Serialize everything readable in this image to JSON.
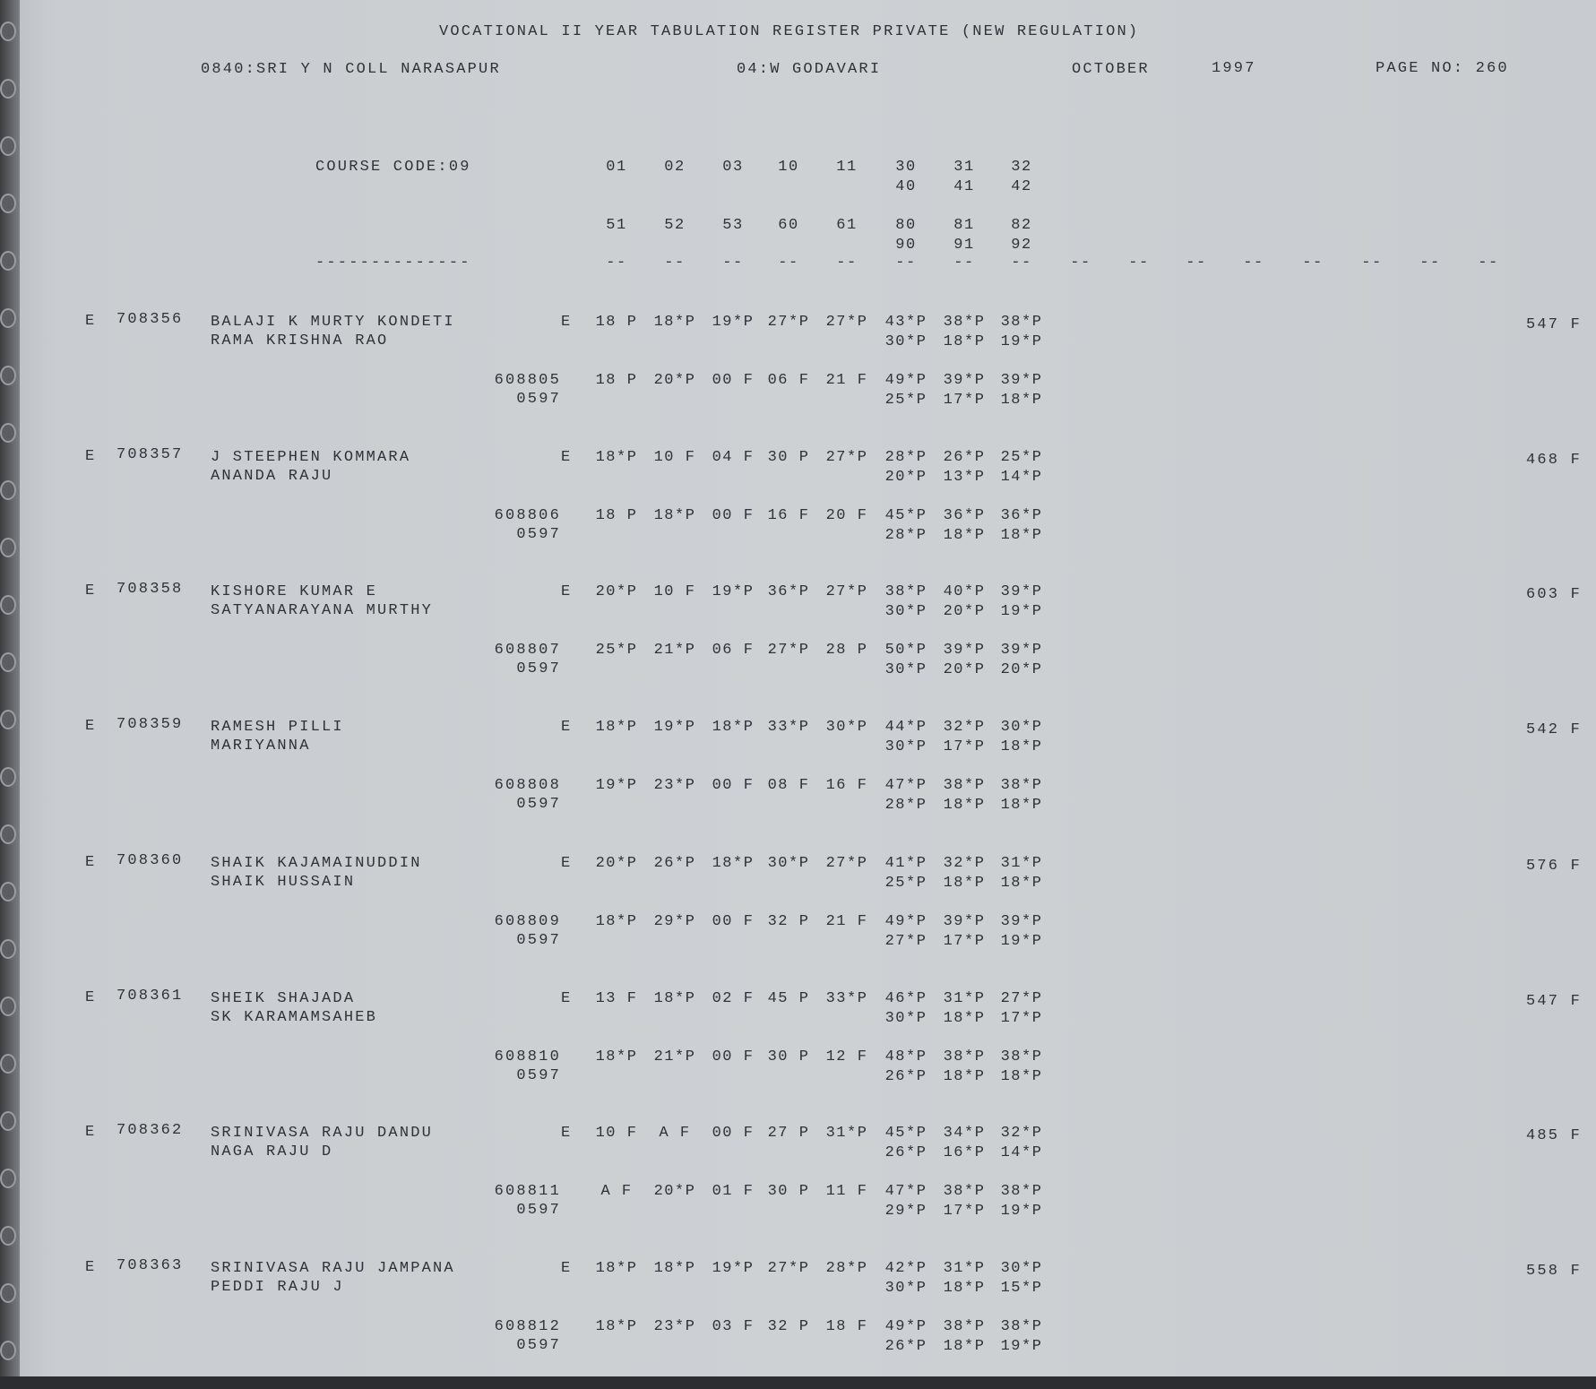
{
  "header": {
    "title": "VOCATIONAL II YEAR TABULATION REGISTER PRIVATE (NEW REGULATION)",
    "college": "0840:SRI Y N COLL NARASAPUR",
    "district": "04:W GODAVARI",
    "month": "OCTOBER",
    "year": "1997",
    "page": "PAGE NO: 260"
  },
  "course": {
    "label": "COURSE CODE:09",
    "codes_row1": [
      "01",
      "02",
      "03",
      "10",
      "11",
      "30",
      "31",
      "32"
    ],
    "codes_row2": [
      "40",
      "41",
      "42"
    ],
    "codes_row3": [
      "51",
      "52",
      "53",
      "60",
      "61",
      "80",
      "81",
      "82"
    ],
    "codes_row4": [
      "90",
      "91",
      "92"
    ],
    "label_dashes": "--------------",
    "col_dashes": "--"
  },
  "students": [
    {
      "flag": "E",
      "roll": "708356",
      "name1": "BALAJI K MURTY KONDETI",
      "name2": "RAMA KRISHNA RAO",
      "code": "E",
      "marks1": [
        "18 P",
        "18*P",
        "19*P",
        "27*P",
        "27*P",
        "43*P",
        "38*P",
        "38*P"
      ],
      "marks2": [
        "30*P",
        "18*P",
        "19*P"
      ],
      "roll2": "608805",
      "code2": "0597",
      "marks3": [
        "18 P",
        "20*P",
        "00 F",
        "06 F",
        "21 F",
        "49*P",
        "39*P",
        "39*P"
      ],
      "marks4": [
        "25*P",
        "17*P",
        "18*P"
      ],
      "total": "547 F"
    },
    {
      "flag": "E",
      "roll": "708357",
      "name1": "J STEEPHEN KOMMARA",
      "name2": "ANANDA RAJU",
      "code": "E",
      "marks1": [
        "18*P",
        "10 F",
        "04 F",
        "30 P",
        "27*P",
        "28*P",
        "26*P",
        "25*P"
      ],
      "marks2": [
        "20*P",
        "13*P",
        "14*P"
      ],
      "roll2": "608806",
      "code2": "0597",
      "marks3": [
        "18 P",
        "18*P",
        "00 F",
        "16 F",
        "20 F",
        "45*P",
        "36*P",
        "36*P"
      ],
      "marks4": [
        "28*P",
        "18*P",
        "18*P"
      ],
      "total": "468 F"
    },
    {
      "flag": "E",
      "roll": "708358",
      "name1": "KISHORE KUMAR E",
      "name2": "SATYANARAYANA MURTHY",
      "code": "E",
      "marks1": [
        "20*P",
        "10 F",
        "19*P",
        "36*P",
        "27*P",
        "38*P",
        "40*P",
        "39*P"
      ],
      "marks2": [
        "30*P",
        "20*P",
        "19*P"
      ],
      "roll2": "608807",
      "code2": "0597",
      "marks3": [
        "25*P",
        "21*P",
        "06 F",
        "27*P",
        "28 P",
        "50*P",
        "39*P",
        "39*P"
      ],
      "marks4": [
        "30*P",
        "20*P",
        "20*P"
      ],
      "total": "603 F"
    },
    {
      "flag": "E",
      "roll": "708359",
      "name1": "RAMESH PILLI",
      "name2": "MARIYANNA",
      "code": "E",
      "marks1": [
        "18*P",
        "19*P",
        "18*P",
        "33*P",
        "30*P",
        "44*P",
        "32*P",
        "30*P"
      ],
      "marks2": [
        "30*P",
        "17*P",
        "18*P"
      ],
      "roll2": "608808",
      "code2": "0597",
      "marks3": [
        "19*P",
        "23*P",
        "00 F",
        "08 F",
        "16 F",
        "47*P",
        "38*P",
        "38*P"
      ],
      "marks4": [
        "28*P",
        "18*P",
        "18*P"
      ],
      "total": "542 F"
    },
    {
      "flag": "E",
      "roll": "708360",
      "name1": "SHAIK KAJAMAINUDDIN",
      "name2": "SHAIK HUSSAIN",
      "code": "E",
      "marks1": [
        "20*P",
        "26*P",
        "18*P",
        "30*P",
        "27*P",
        "41*P",
        "32*P",
        "31*P"
      ],
      "marks2": [
        "25*P",
        "18*P",
        "18*P"
      ],
      "roll2": "608809",
      "code2": "0597",
      "marks3": [
        "18*P",
        "29*P",
        "00 F",
        "32 P",
        "21 F",
        "49*P",
        "39*P",
        "39*P"
      ],
      "marks4": [
        "27*P",
        "17*P",
        "19*P"
      ],
      "total": "576 F"
    },
    {
      "flag": "E",
      "roll": "708361",
      "name1": "SHEIK SHAJADA",
      "name2": "SK KARAMAMSAHEB",
      "code": "E",
      "marks1": [
        "13 F",
        "18*P",
        "02 F",
        "45 P",
        "33*P",
        "46*P",
        "31*P",
        "27*P"
      ],
      "marks2": [
        "30*P",
        "18*P",
        "17*P"
      ],
      "roll2": "608810",
      "code2": "0597",
      "marks3": [
        "18*P",
        "21*P",
        "00 F",
        "30 P",
        "12 F",
        "48*P",
        "38*P",
        "38*P"
      ],
      "marks4": [
        "26*P",
        "18*P",
        "18*P"
      ],
      "total": "547 F"
    },
    {
      "flag": "E",
      "roll": "708362",
      "name1": "SRINIVASA RAJU DANDU",
      "name2": "NAGA RAJU D",
      "code": "E",
      "marks1": [
        "10 F",
        "A F",
        "00 F",
        "27 P",
        "31*P",
        "45*P",
        "34*P",
        "32*P"
      ],
      "marks2": [
        "26*P",
        "16*P",
        "14*P"
      ],
      "roll2": "608811",
      "code2": "0597",
      "marks3": [
        "A F",
        "20*P",
        "01 F",
        "30 P",
        "11 F",
        "47*P",
        "38*P",
        "38*P"
      ],
      "marks4": [
        "29*P",
        "17*P",
        "19*P"
      ],
      "total": "485 F"
    },
    {
      "flag": "E",
      "roll": "708363",
      "name1": "SRINIVASA RAJU JAMPANA",
      "name2": "PEDDI RAJU J",
      "code": "E",
      "marks1": [
        "18*P",
        "18*P",
        "19*P",
        "27*P",
        "28*P",
        "42*P",
        "31*P",
        "30*P"
      ],
      "marks2": [
        "30*P",
        "18*P",
        "15*P"
      ],
      "roll2": "608812",
      "code2": "0597",
      "marks3": [
        "18*P",
        "23*P",
        "03 F",
        "32 P",
        "18 F",
        "49*P",
        "38*P",
        "38*P"
      ],
      "marks4": [
        "26*P",
        "18*P",
        "19*P"
      ],
      "total": "558 F"
    }
  ]
}
